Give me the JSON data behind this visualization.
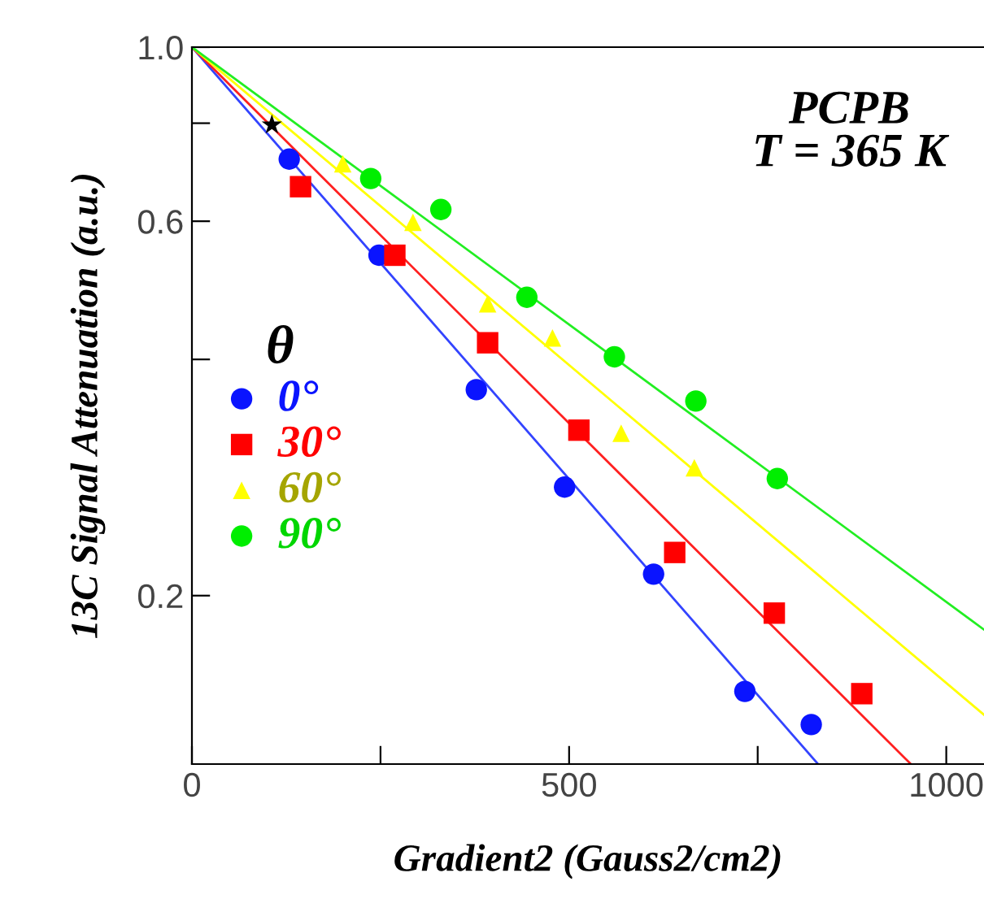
{
  "chart_data": {
    "type": "scatter",
    "xlabel": "Gradient2 (Gauss2/cm2)",
    "ylabel": "13C Signal Attenuation (a.u.)",
    "legend_title": "θ",
    "annotations": [
      "PCPB\nT = 365 K"
    ],
    "log": "y",
    "xlim": [
      0,
      1050
    ],
    "ylim": [
      0.122,
      1.0
    ],
    "xticks": [
      0,
      {
        "value": 250,
        "label": null
      },
      500,
      {
        "value": 750,
        "label": null
      },
      1000
    ],
    "yticks": [
      {
        "value": 0.2,
        "label": "0.2"
      },
      {
        "value": 0.4,
        "label": null
      },
      {
        "value": 0.6,
        "label": "0.6"
      },
      {
        "value": 0.8,
        "label": null
      },
      {
        "value": 1.0,
        "label": "1.0"
      }
    ],
    "grid": false,
    "legend": "left",
    "series": [
      {
        "type": "line",
        "color": "#3344ff",
        "x": [
          0,
          830
        ],
        "values": [
          1.0,
          0.122
        ]
      },
      {
        "type": "line",
        "color": "#ff2020",
        "x": [
          0,
          953
        ],
        "values": [
          1.0,
          0.122
        ]
      },
      {
        "type": "line",
        "color": "#ffff00",
        "x": [
          0,
          1050
        ],
        "values": [
          1.0,
          0.141
        ]
      },
      {
        "type": "line",
        "color": "#22ee22",
        "x": [
          0,
          1050
        ],
        "values": [
          1.0,
          0.181
        ]
      },
      {
        "name": "0°",
        "color": "#0a14ff",
        "marker": "circle",
        "x": [
          129,
          248,
          377,
          494,
          612,
          733,
          821
        ],
        "values": [
          0.72,
          0.543,
          0.366,
          0.275,
          0.213,
          0.151,
          0.137
        ]
      },
      {
        "name": "30°",
        "color": "#ff0000",
        "marker": "square",
        "x": [
          144,
          269,
          392,
          513,
          640,
          772,
          888
        ],
        "values": [
          0.664,
          0.543,
          0.42,
          0.325,
          0.227,
          0.19,
          0.15
        ]
      },
      {
        "name": "60°",
        "color": "#ffff00",
        "marker": "triangle",
        "x": [
          200,
          293,
          392,
          478,
          569,
          666
        ],
        "values": [
          0.71,
          0.598,
          0.471,
          0.426,
          0.322,
          0.291
        ]
      },
      {
        "name": "90°",
        "color": "#00ee00",
        "marker": "circle",
        "x": [
          237,
          330,
          444,
          560,
          668,
          776
        ],
        "values": [
          0.68,
          0.621,
          0.48,
          0.403,
          0.354,
          0.282
        ]
      },
      {
        "color": "#000000",
        "marker": "star",
        "x": [
          106
        ],
        "values": [
          0.796
        ]
      }
    ]
  }
}
